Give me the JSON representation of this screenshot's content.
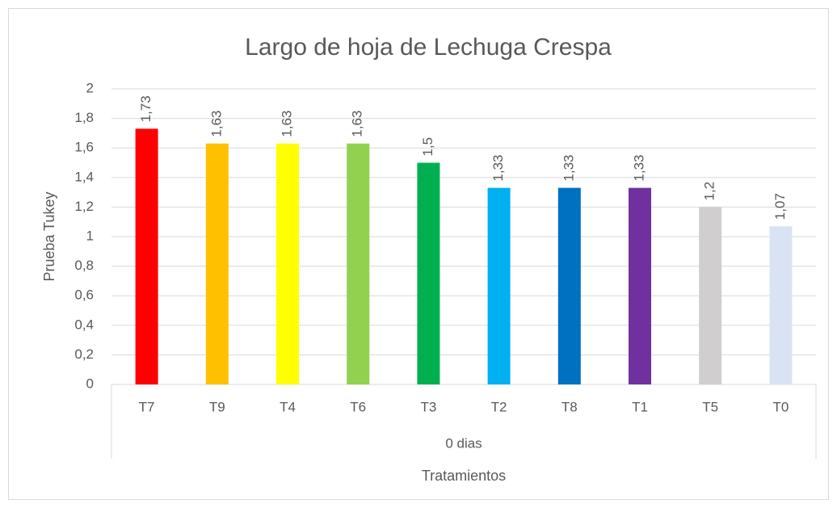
{
  "chart_data": {
    "type": "bar",
    "title": "Largo de hoja de Lechuga Crespa",
    "x_label": "Tratamientos",
    "y_label": "Prueba Tukey",
    "group_label": "0 dias",
    "categories": [
      "T7",
      "T9",
      "T4",
      "T6",
      "T3",
      "T2",
      "T8",
      "T1",
      "T5",
      "T0"
    ],
    "values": [
      1.73,
      1.63,
      1.63,
      1.63,
      1.5,
      1.33,
      1.33,
      1.33,
      1.2,
      1.07
    ],
    "value_labels": [
      "1,73",
      "1,63",
      "1,63",
      "1,63",
      "1,5",
      "1,33",
      "1,33",
      "1,33",
      "1,2",
      "1,07"
    ],
    "colors": [
      "#ff0000",
      "#ffc000",
      "#ffff00",
      "#92d050",
      "#00b050",
      "#00b0f0",
      "#0070c0",
      "#7030a0",
      "#d0cece",
      "#dae3f3"
    ],
    "ylim": [
      0,
      2
    ],
    "yticks": [
      0,
      {
        "value": 0.2,
        "label": "0,2"
      },
      {
        "value": 0.4,
        "label": "0,4"
      },
      {
        "value": 0.6,
        "label": "0,6"
      },
      {
        "value": 0.8,
        "label": "0,8"
      },
      1,
      {
        "value": 1.2,
        "label": "1,2"
      },
      {
        "value": 1.4,
        "label": "1,4"
      },
      {
        "value": 1.6,
        "label": "1,6"
      },
      {
        "value": 1.8,
        "label": "1,8"
      },
      2
    ],
    "grid": true
  }
}
